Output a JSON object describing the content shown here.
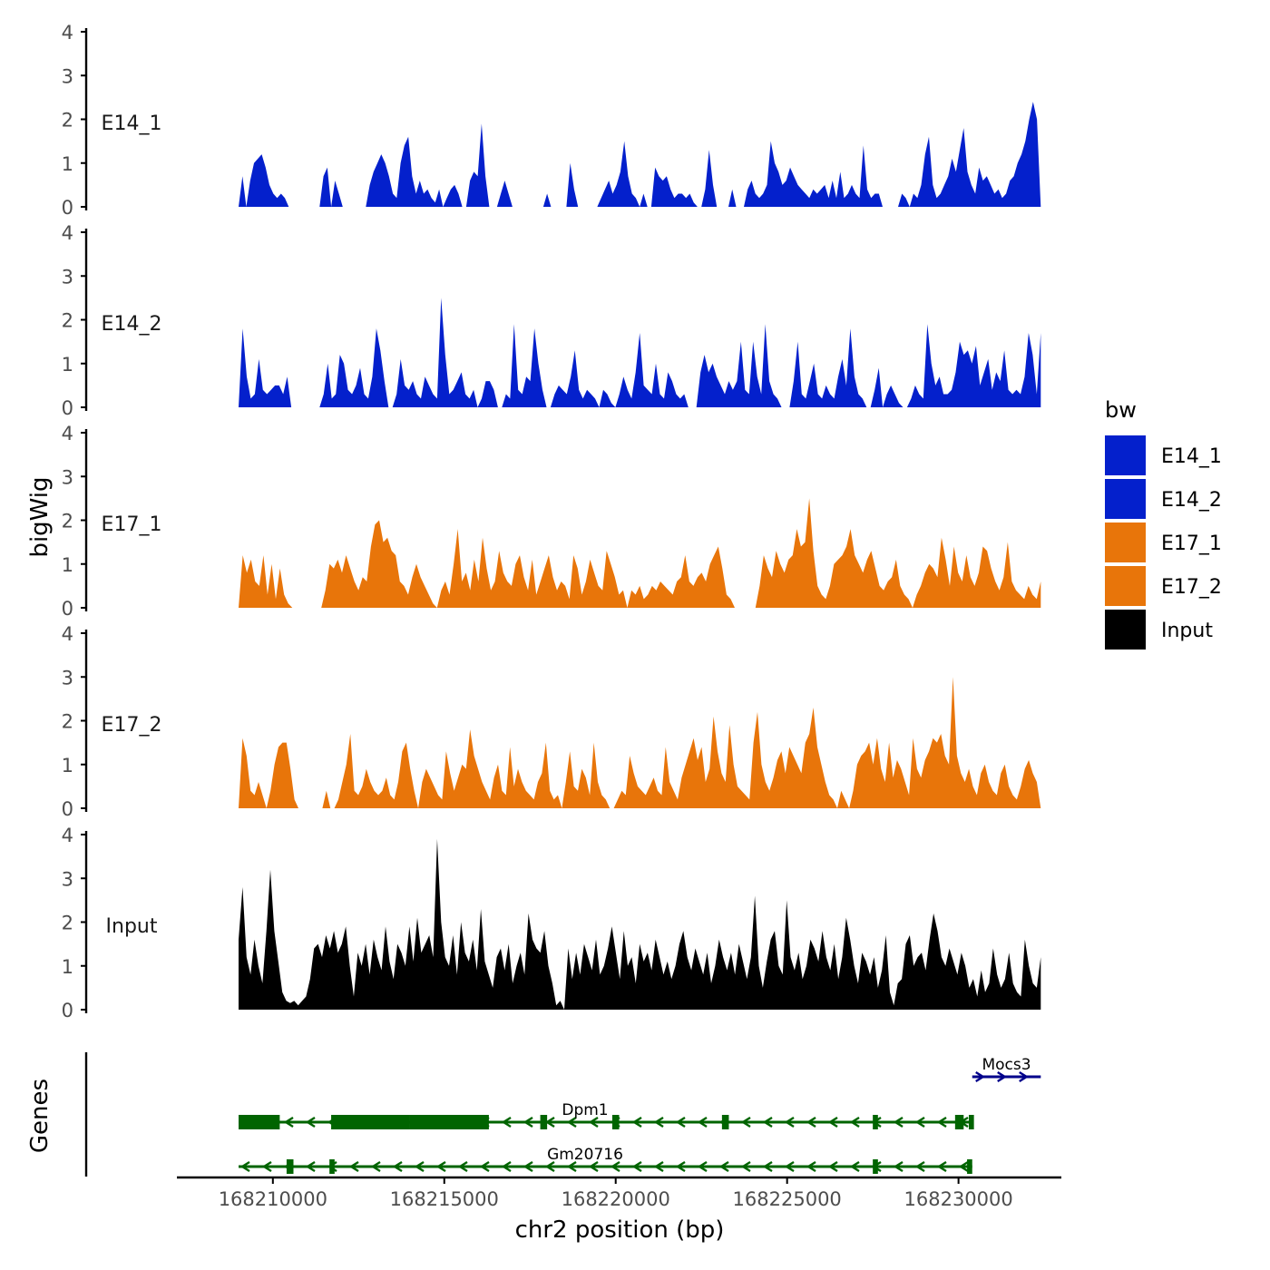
{
  "chart_data": {
    "type": "area",
    "ylabel": "bigWig",
    "xlabel": "chr2 position (bp)",
    "xlim": [
      168207200,
      168233000
    ],
    "x_ticks": [
      {
        "value": 168210000,
        "label": "168210000"
      },
      {
        "value": 168215000,
        "label": "168215000"
      },
      {
        "value": 168220000,
        "label": "168220000"
      },
      {
        "value": 168225000,
        "label": "168225000"
      },
      {
        "value": 168230000,
        "label": "168230000"
      }
    ],
    "ylim": [
      0,
      4
    ],
    "y_ticks": [
      {
        "value": 0,
        "label": "0"
      },
      {
        "value": 1,
        "label": "1"
      },
      {
        "value": 2,
        "label": "2"
      },
      {
        "value": 3,
        "label": "3"
      },
      {
        "value": 4,
        "label": "4"
      }
    ],
    "track_range": [
      168209000,
      168232400
    ],
    "series": [
      {
        "name": "E14_1",
        "color": "#0420cc",
        "values": [
          0,
          0.7,
          0,
          0.6,
          1.0,
          1.1,
          1.2,
          0.9,
          0.5,
          0.3,
          0.2,
          0.3,
          0.2,
          0,
          0,
          0,
          0,
          0,
          0,
          0,
          0,
          0,
          0.7,
          0.9,
          0,
          0.6,
          0.3,
          0,
          0,
          0,
          0,
          0,
          0,
          0,
          0.5,
          0.8,
          1.0,
          1.2,
          1.0,
          0.7,
          0.3,
          0.2,
          1.0,
          1.4,
          1.6,
          0.7,
          0.3,
          0.6,
          0.3,
          0.4,
          0.2,
          0.1,
          0.4,
          0,
          0.2,
          0.4,
          0.5,
          0.3,
          0,
          0,
          0.6,
          0.8,
          0.7,
          1.9,
          0.7,
          0,
          0,
          0,
          0.3,
          0.6,
          0.3,
          0,
          0,
          0,
          0,
          0,
          0,
          0,
          0,
          0,
          0.3,
          0,
          0,
          0,
          0,
          0,
          1.0,
          0.4,
          0,
          0,
          0,
          0,
          0,
          0,
          0.2,
          0.4,
          0.6,
          0.3,
          0.5,
          0.8,
          1.5,
          0.7,
          0.3,
          0.2,
          0,
          0.3,
          0,
          0,
          0.9,
          0.7,
          0.6,
          0.7,
          0.4,
          0.2,
          0.3,
          0.3,
          0.2,
          0.3,
          0.1,
          0,
          0,
          0.4,
          1.3,
          0.5,
          0,
          0,
          0,
          0,
          0.4,
          0,
          0,
          0,
          0.4,
          0.6,
          0.3,
          0.2,
          0.3,
          0.5,
          1.5,
          1.0,
          0.8,
          0.5,
          0.6,
          0.9,
          0.7,
          0.5,
          0.4,
          0.3,
          0.2,
          0.4,
          0.3,
          0.4,
          0.5,
          0.2,
          0.6,
          0.2,
          0.8,
          0.2,
          0.3,
          0.5,
          0.3,
          0.2,
          1.4,
          0.4,
          0.2,
          0.3,
          0.3,
          0,
          0,
          0,
          0,
          0,
          0.3,
          0.2,
          0,
          0.3,
          0.2,
          0.5,
          1.2,
          1.6,
          0.5,
          0.2,
          0.3,
          0.5,
          0.7,
          1.1,
          0.8,
          1.3,
          1.8,
          0.8,
          0.5,
          0.3,
          0.9,
          0.6,
          0.7,
          0.5,
          0.3,
          0.4,
          0.2,
          0.3,
          0.6,
          0.7,
          1.0,
          1.2,
          1.5,
          2.0,
          2.4,
          2.0,
          0
        ]
      },
      {
        "name": "E14_2",
        "color": "#0420cc",
        "values": [
          0,
          1.8,
          0.7,
          0.2,
          0.3,
          1.1,
          0.4,
          0.3,
          0.4,
          0.5,
          0.5,
          0.3,
          0.7,
          0,
          0,
          0,
          0,
          0,
          0,
          0,
          0,
          0.3,
          1.0,
          0.2,
          0.3,
          1.2,
          1.0,
          0.4,
          0.3,
          0.5,
          0.9,
          0.3,
          0.2,
          0.7,
          1.8,
          1.3,
          0.6,
          0,
          0,
          0.3,
          1.1,
          0.5,
          0.4,
          0.6,
          0.3,
          0.2,
          0.7,
          0.5,
          0.3,
          0.2,
          2.5,
          1.2,
          0.3,
          0.4,
          0.6,
          0.8,
          0.3,
          0.2,
          0.4,
          0,
          0.2,
          0.6,
          0.6,
          0.4,
          0,
          0,
          0.3,
          0.2,
          1.9,
          0.4,
          0.3,
          0.7,
          0.6,
          1.8,
          1.0,
          0.4,
          0,
          0,
          0.3,
          0.5,
          0.4,
          0.3,
          0.7,
          1.3,
          0.4,
          0.2,
          0.4,
          0.3,
          0.2,
          0,
          0.4,
          0.3,
          0.1,
          0,
          0.3,
          0.7,
          0.4,
          0.2,
          0.8,
          1.7,
          0.5,
          0.4,
          0.3,
          1.0,
          0.3,
          0.2,
          0.8,
          0.6,
          0.3,
          0.2,
          0.3,
          0,
          0,
          0,
          0.8,
          1.2,
          0.8,
          1.0,
          0.7,
          0.5,
          0.3,
          0.6,
          0.4,
          0.6,
          1.5,
          0.4,
          0.3,
          1.5,
          0.7,
          0.3,
          1.9,
          0.6,
          0.3,
          0.2,
          0,
          0,
          0,
          0.6,
          1.5,
          0.3,
          0.2,
          0.6,
          1.0,
          0.3,
          0.2,
          0.5,
          0.3,
          0.2,
          0.7,
          1.1,
          0.5,
          1.8,
          0.7,
          0.3,
          0.2,
          0,
          0,
          0.4,
          0.9,
          0,
          0.3,
          0.5,
          0.3,
          0.1,
          0,
          0,
          0.2,
          0.5,
          0.3,
          0.2,
          1.9,
          1.0,
          0.5,
          0.7,
          0.3,
          0.3,
          0.4,
          0.8,
          1.5,
          1.2,
          1.3,
          1.0,
          1.4,
          0.5,
          0.8,
          1.1,
          0.4,
          0.8,
          0.6,
          1.3,
          0.4,
          0.3,
          0.4,
          0.3,
          0.7,
          1.7,
          1.2,
          0.3,
          1.7
        ]
      },
      {
        "name": "E17_1",
        "color": "#e8750a",
        "values": [
          0,
          1.2,
          0.8,
          1.1,
          0.6,
          0.5,
          1.2,
          0.3,
          1.0,
          0.2,
          0.9,
          0.3,
          0.1,
          0,
          0,
          0,
          0,
          0,
          0,
          0,
          0,
          0.4,
          1.0,
          0.9,
          1.1,
          0.8,
          1.2,
          0.9,
          0.6,
          0.4,
          0.7,
          0.6,
          1.4,
          1.9,
          2.0,
          1.5,
          1.6,
          1.3,
          1.2,
          0.6,
          0.5,
          0.3,
          0.7,
          1.0,
          0.7,
          0.5,
          0.3,
          0.1,
          0,
          0.4,
          0.6,
          0.3,
          1.0,
          1.8,
          0.6,
          0.8,
          0.4,
          1.1,
          0.6,
          1.6,
          0.9,
          0.4,
          0.6,
          1.3,
          0.8,
          0.6,
          0.5,
          1.0,
          1.2,
          0.7,
          0.4,
          1.1,
          0.3,
          0.6,
          0.9,
          1.2,
          0.7,
          0.4,
          0.6,
          0.5,
          0.2,
          1.2,
          0.9,
          0.3,
          0.6,
          1.1,
          0.8,
          0.5,
          0.4,
          1.3,
          1.0,
          0.7,
          0.3,
          0.4,
          0,
          0.4,
          0.3,
          0.5,
          0.2,
          0.3,
          0.5,
          0.4,
          0.6,
          0.5,
          0.4,
          0.3,
          0.6,
          0.7,
          1.2,
          0.6,
          0.5,
          0.7,
          0.8,
          0.6,
          1.0,
          1.2,
          1.4,
          0.9,
          0.3,
          0.2,
          0,
          0,
          0,
          0,
          0,
          0,
          0.5,
          1.2,
          0.9,
          0.7,
          1.3,
          1.0,
          0.8,
          1.1,
          1.2,
          1.8,
          1.4,
          1.5,
          2.5,
          1.3,
          0.5,
          0.3,
          0.2,
          0.5,
          1.0,
          1.1,
          1.2,
          1.4,
          1.8,
          1.2,
          1.0,
          0.8,
          1.1,
          1.3,
          0.9,
          0.5,
          0.4,
          0.6,
          0.7,
          1.1,
          0.5,
          0.3,
          0.2,
          0,
          0.3,
          0.5,
          0.8,
          1.0,
          0.9,
          0.7,
          1.6,
          1.1,
          0.5,
          1.4,
          0.8,
          0.6,
          1.2,
          0.7,
          0.5,
          0.8,
          1.4,
          1.3,
          0.9,
          0.6,
          0.4,
          0.7,
          1.5,
          0.6,
          0.4,
          0.3,
          0.2,
          0.5,
          0.3,
          0.2,
          0.6
        ]
      },
      {
        "name": "E17_2",
        "color": "#e8750a",
        "values": [
          0,
          1.6,
          1.2,
          0.4,
          0.3,
          0.6,
          0.3,
          0,
          0.4,
          1.0,
          1.4,
          1.5,
          1.5,
          0.9,
          0.2,
          0,
          0,
          0,
          0,
          0,
          0,
          0,
          0.4,
          0,
          0,
          0.2,
          0.6,
          1.0,
          1.7,
          0.4,
          0.3,
          0.5,
          0.9,
          0.6,
          0.4,
          0.3,
          0.4,
          0.7,
          0.3,
          0.2,
          0.6,
          1.3,
          1.5,
          0.9,
          0.4,
          0,
          0.6,
          0.9,
          0.7,
          0.5,
          0.3,
          0.2,
          1.3,
          0.8,
          0.4,
          0.7,
          1.0,
          0.9,
          1.8,
          1.2,
          0.9,
          0.6,
          0.4,
          0.2,
          0.7,
          1.0,
          0.4,
          0.3,
          1.4,
          0.5,
          0.9,
          0.6,
          0.4,
          0.3,
          0.2,
          0.6,
          0.8,
          1.5,
          0.4,
          0.2,
          0.3,
          0,
          0.6,
          1.3,
          0.5,
          0.4,
          0.9,
          0.7,
          0.3,
          1.5,
          0.6,
          0.3,
          0.2,
          0,
          0,
          0.2,
          0.4,
          0.3,
          1.2,
          0.8,
          0.5,
          0.4,
          0.3,
          0.5,
          0.7,
          0.4,
          0.3,
          1.4,
          0.6,
          0.4,
          0.2,
          0.7,
          1.0,
          1.3,
          1.6,
          1.1,
          1.4,
          0.6,
          0.9,
          2.1,
          1.3,
          0.8,
          0.6,
          1.9,
          1.0,
          0.5,
          0.4,
          0.3,
          0.2,
          1.5,
          2.2,
          1.0,
          0.6,
          0.4,
          0.7,
          1.1,
          1.3,
          0.8,
          1.4,
          1.2,
          1.0,
          0.8,
          1.5,
          1.7,
          2.3,
          1.4,
          1.0,
          0.6,
          0.3,
          0.2,
          0,
          0.4,
          0.2,
          0,
          0.4,
          1.0,
          1.2,
          1.3,
          1.5,
          1.0,
          1.6,
          0.9,
          0.6,
          1.5,
          0.7,
          1.1,
          0.9,
          0.6,
          0.3,
          1.6,
          0.9,
          0.7,
          1.1,
          1.3,
          1.6,
          1.5,
          1.7,
          1.2,
          1.0,
          3.0,
          1.2,
          0.8,
          0.6,
          0.9,
          0.5,
          0.3,
          0.8,
          1.0,
          0.6,
          0.4,
          0.3,
          0.8,
          1.0,
          0.5,
          0.3,
          0.2,
          0.5,
          0.9,
          1.1,
          0.8,
          0.6,
          0
        ]
      },
      {
        "name": "Input",
        "color": "#000000",
        "values": [
          1.6,
          2.8,
          1.2,
          0.8,
          1.6,
          1.0,
          0.6,
          1.8,
          3.2,
          1.8,
          1.1,
          0.4,
          0.2,
          0.15,
          0.2,
          0.1,
          0.2,
          0.3,
          0.7,
          1.4,
          1.5,
          1.2,
          1.7,
          1.4,
          1.8,
          1.3,
          1.5,
          1.9,
          1.0,
          0.3,
          1.3,
          1.0,
          1.5,
          0.8,
          1.6,
          1.2,
          0.9,
          1.9,
          1.1,
          0.7,
          1.5,
          1.3,
          1.0,
          1.9,
          1.1,
          2.1,
          1.3,
          1.5,
          1.7,
          1.2,
          3.9,
          2.0,
          1.2,
          1.0,
          1.7,
          0.8,
          2.0,
          1.3,
          1.1,
          1.6,
          0.9,
          2.3,
          1.1,
          0.8,
          0.5,
          1.2,
          1.4,
          0.9,
          1.5,
          0.6,
          1.0,
          1.3,
          0.8,
          2.2,
          1.6,
          1.4,
          1.3,
          1.8,
          1.0,
          0.6,
          0.1,
          0.2,
          0,
          1.4,
          0.7,
          1.3,
          0.8,
          1.5,
          1.2,
          0.9,
          1.6,
          0.8,
          1.0,
          1.4,
          1.9,
          1.3,
          0.7,
          1.8,
          1.0,
          1.2,
          0.6,
          1.5,
          1.1,
          1.3,
          0.9,
          1.6,
          1.2,
          0.8,
          1.1,
          0.7,
          1.0,
          1.5,
          1.8,
          1.2,
          0.9,
          1.4,
          1.1,
          0.8,
          1.3,
          0.6,
          1.0,
          1.6,
          1.2,
          0.9,
          1.3,
          0.8,
          1.5,
          1.1,
          0.7,
          1.2,
          2.6,
          1.0,
          0.5,
          1.1,
          1.6,
          1.8,
          1.0,
          0.8,
          2.5,
          1.2,
          0.9,
          1.3,
          0.7,
          1.0,
          1.6,
          1.4,
          1.1,
          1.8,
          1.2,
          0.9,
          1.5,
          0.7,
          1.2,
          2.1,
          1.6,
          1.0,
          0.6,
          1.3,
          1.1,
          0.8,
          1.2,
          0.5,
          0.9,
          1.7,
          0.4,
          0.1,
          0.6,
          0.7,
          1.5,
          1.7,
          1.0,
          1.2,
          1.3,
          0.9,
          1.6,
          2.2,
          1.8,
          1.2,
          1.0,
          1.4,
          1.1,
          0.8,
          1.3,
          1.0,
          0.5,
          0.7,
          0.3,
          0.9,
          0.4,
          0.6,
          1.4,
          0.8,
          0.5,
          0.7,
          1.3,
          0.6,
          0.4,
          0.3,
          1.6,
          1.0,
          0.6,
          0.5,
          1.2
        ]
      }
    ],
    "legend": {
      "title": "bw",
      "position": "right",
      "entries": [
        "E14_1",
        "E14_2",
        "E17_1",
        "E17_2",
        "Input"
      ]
    },
    "genes_panel": {
      "ylabel": "Genes",
      "genes": [
        {
          "name": "Mocs3",
          "start": 168230400,
          "end": 168232400,
          "strand": "+",
          "color": "#00008b",
          "exons": []
        },
        {
          "name": "Dpm1",
          "start": 168209000,
          "end": 168230400,
          "strand": "-",
          "color": "#006400",
          "exons": [
            [
              168209000,
              168210200
            ],
            [
              168211700,
              168214000
            ],
            [
              168214000,
              168216300
            ],
            [
              168217800,
              168218000
            ],
            [
              168219900,
              168220100
            ],
            [
              168223100,
              168223300
            ],
            [
              168227500,
              168227650
            ],
            [
              168229900,
              168230150
            ],
            [
              168230300,
              168230450
            ]
          ]
        },
        {
          "name": "Gm20716",
          "start": 168209000,
          "end": 168230400,
          "strand": "-",
          "color": "#006400",
          "exons": [
            [
              168210400,
              168210600
            ],
            [
              168211650,
              168211800
            ],
            [
              168227500,
              168227650
            ],
            [
              168230250,
              168230400
            ]
          ]
        }
      ]
    }
  }
}
